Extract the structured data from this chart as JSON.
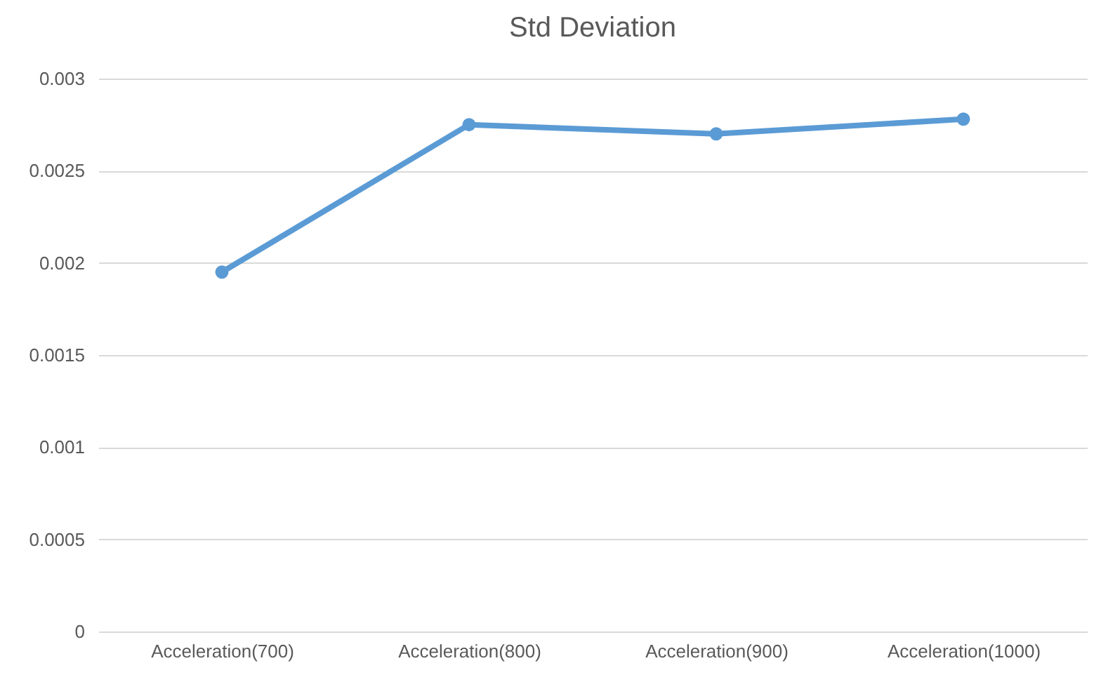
{
  "chart_data": {
    "type": "line",
    "title": "Std Deviation",
    "categories": [
      "Acceleration(700)",
      "Acceleration(800)",
      "Acceleration(900)",
      "Acceleration(1000)"
    ],
    "series": [
      {
        "color": "#5b9bd5",
        "values": [
          0.00195,
          0.00275,
          0.0027,
          0.00278
        ]
      }
    ],
    "ylim": [
      0,
      0.003
    ],
    "yticks": [
      0,
      0.0005,
      0.001,
      0.0015,
      0.002,
      0.0025,
      0.003
    ],
    "grid": "y",
    "legend": false,
    "marker": "circle",
    "line_style": "solid"
  }
}
